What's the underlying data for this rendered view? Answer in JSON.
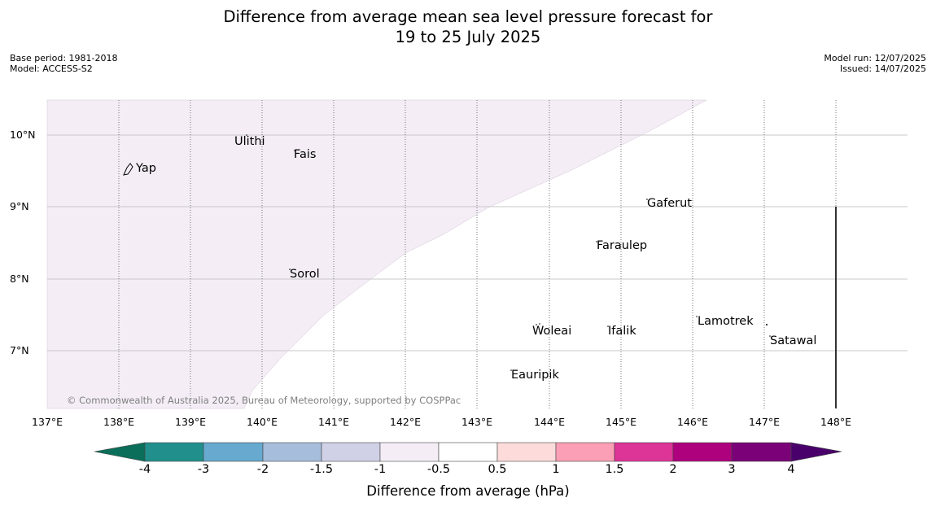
{
  "title_line1": "Difference from average mean sea level pressure forecast for",
  "title_line2": "19 to 25 July 2025",
  "meta": {
    "base_period": "Base period: 1981-2018",
    "model": "Model: ACCESS-S2",
    "model_run": "Model run: 12/07/2025",
    "issued": "Issued: 14/07/2025"
  },
  "map": {
    "lat_labels": [
      "10°N",
      "9°N",
      "8°N",
      "7°N"
    ],
    "lon_labels": [
      "137°E",
      "138°E",
      "139°E",
      "140°E",
      "141°E",
      "142°E",
      "143°E",
      "144°E",
      "145°E",
      "146°E",
      "147°E",
      "148°E"
    ],
    "places": [
      "Yap",
      "Ulithi",
      "Fais",
      "Gaferut",
      "Faraulep",
      "Sorol",
      "Woleai",
      "Ifalik",
      "Lamotrek",
      "Satawal",
      "Eauripik"
    ],
    "shaded_region_color": "#f4edf6",
    "shaded_region_category": "-1 to -0.5",
    "copyright": "© Commonwealth of Australia 2025, Bureau of Meteorology, supported by COSPPac"
  },
  "colorbar": {
    "ticks": [
      "-4",
      "-3",
      "-2",
      "-1.5",
      "-1",
      "-0.5",
      "0.5",
      "1",
      "1.5",
      "2",
      "3",
      "4"
    ],
    "colors": [
      "#0b6e5a",
      "#21908d",
      "#67a9cf",
      "#a6bddb",
      "#d0d1e6",
      "#f4edf6",
      "#ffffff",
      "#fddbdb",
      "#fa9fb5",
      "#dd3497",
      "#ae017e",
      "#7a0177",
      "#49006a"
    ],
    "label": "Difference from average (hPa)"
  }
}
